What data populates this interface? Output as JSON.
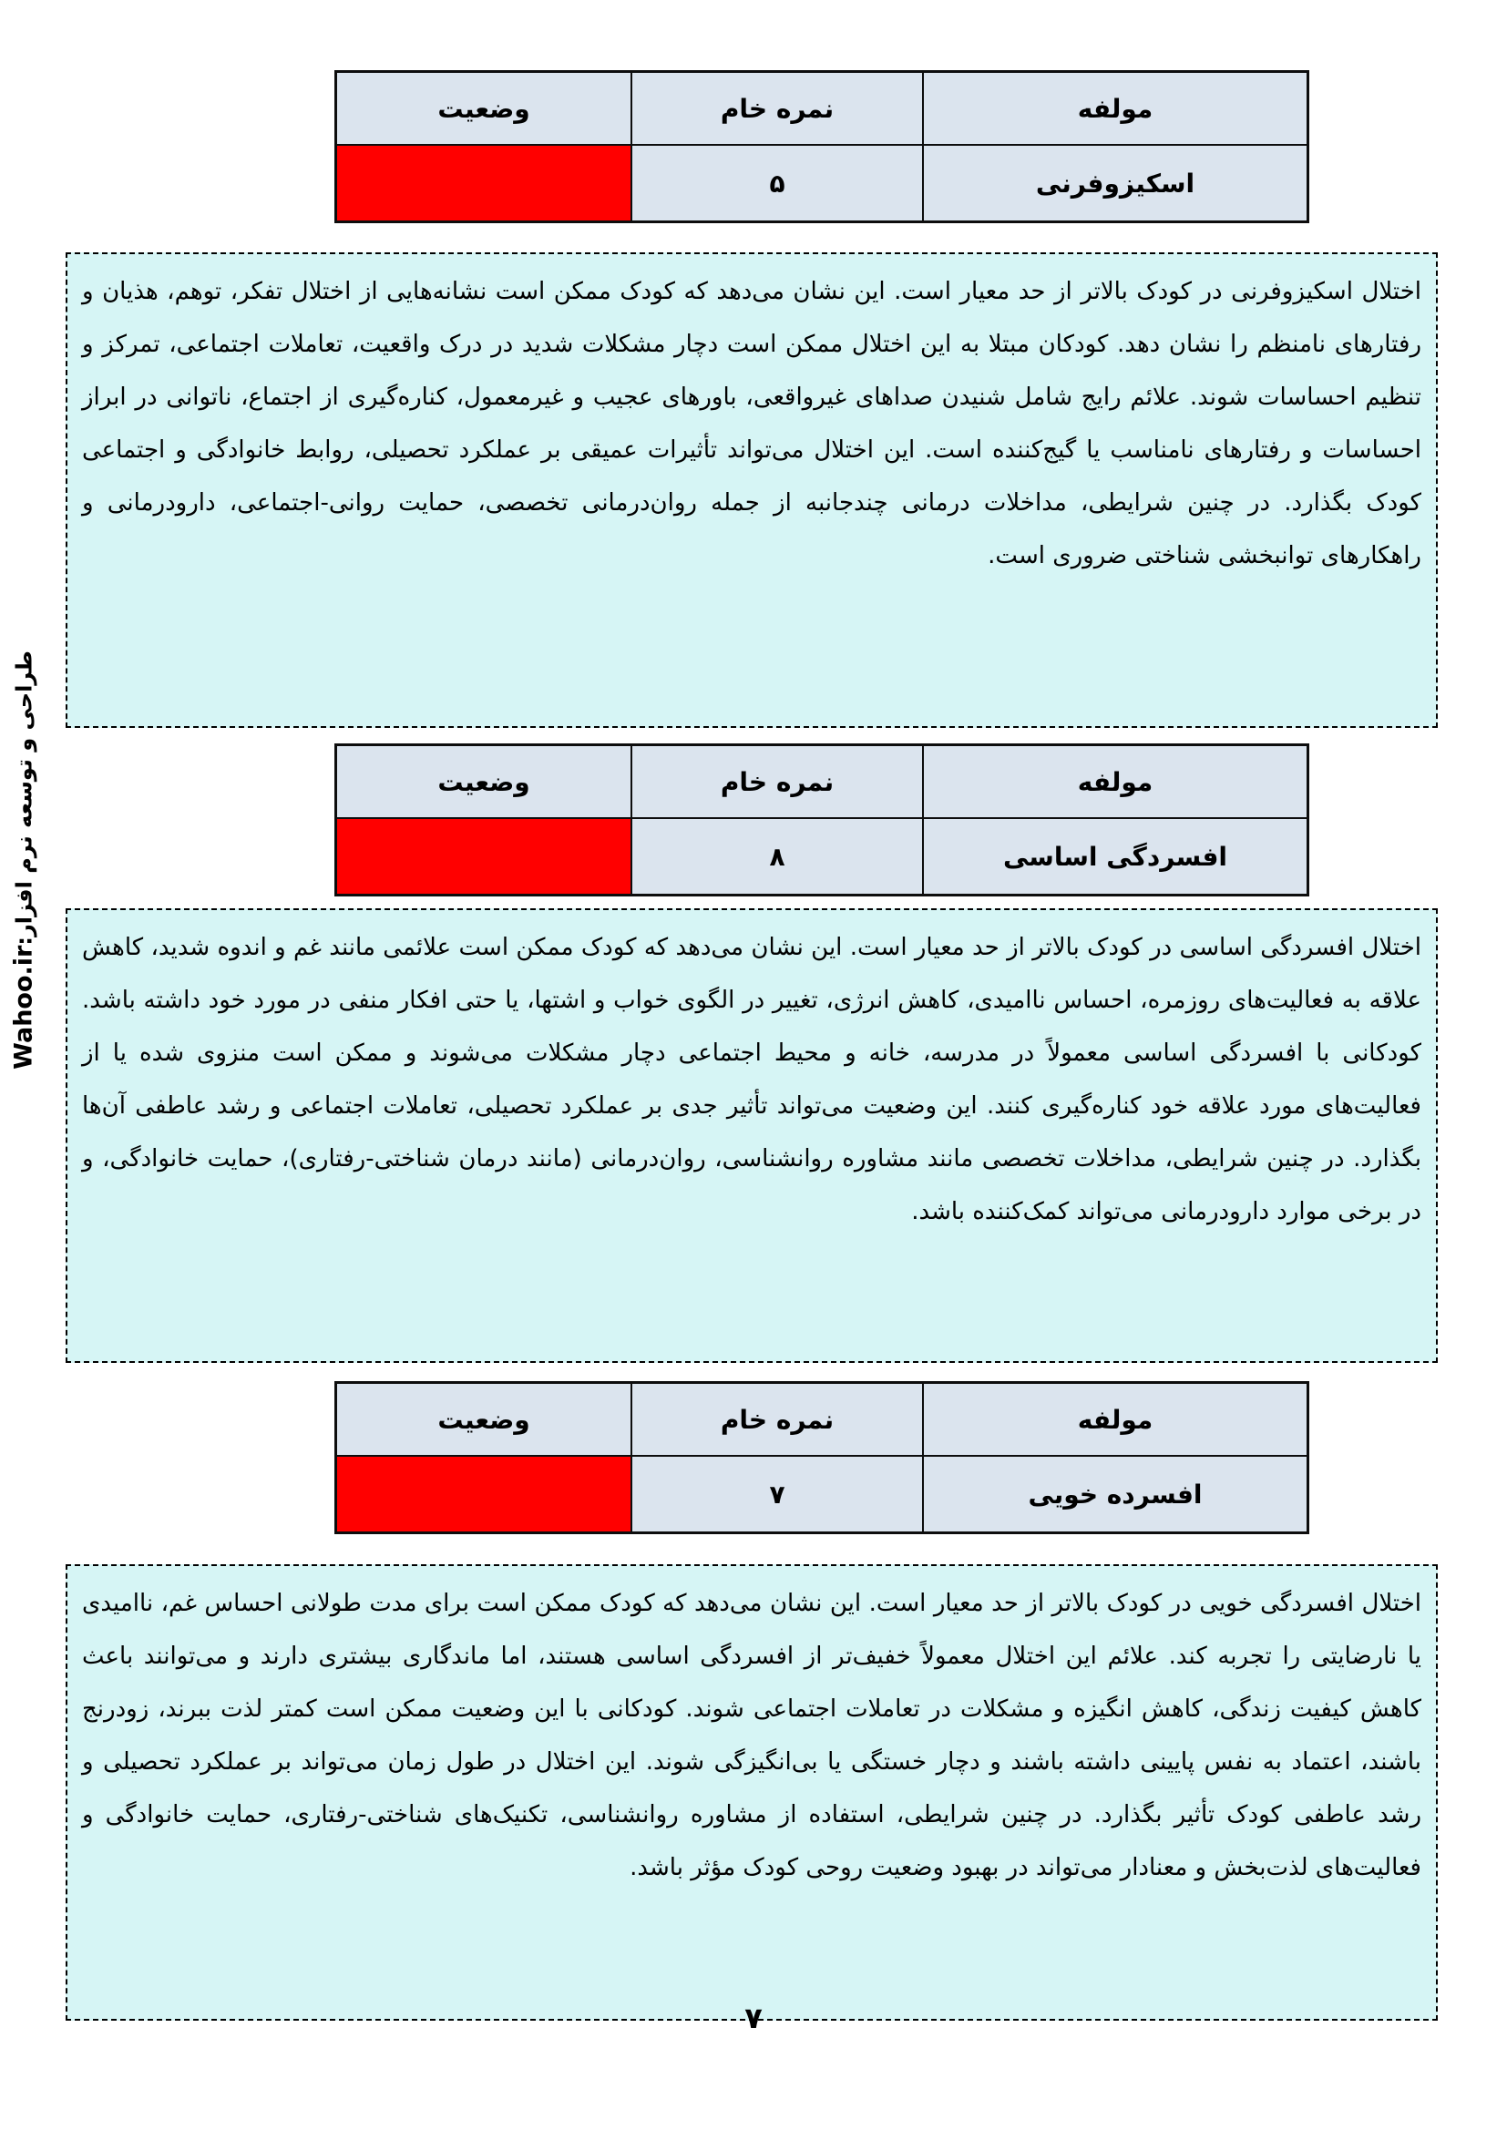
{
  "page": {
    "number": "۷"
  },
  "sidebar": {
    "credit": "طراحی و توسعه نرم افزار:",
    "brand": "Wahoo.ir"
  },
  "table_headers": {
    "component": "مولفه",
    "raw_score": "نمره خام",
    "status": "وضعیت"
  },
  "sections": [
    {
      "component": "اسکیزوفرنی",
      "raw_score": "۵",
      "status_color": "#ff0000",
      "description": "اختلال اسکیزوفرنی در کودک بالاتر از حد معیار است. این نشان می‌دهد که کودک ممکن است نشانه‌هایی از اختلال تفکر، توهم، هذیان و رفتارهای نامنظم را نشان دهد. کودکان مبتلا به این اختلال ممکن است دچار مشکلات شدید در درک واقعیت، تعاملات اجتماعی، تمرکز و تنظیم احساسات شوند. علائم رایج شامل شنیدن صداهای غیرواقعی، باورهای عجیب و غیرمعمول، کناره‌گیری از اجتماع، ناتوانی در ابراز احساسات و رفتارهای نامناسب یا گیج‌کننده است. این اختلال می‌تواند تأثیرات عمیقی بر عملکرد تحصیلی، روابط خانوادگی و اجتماعی کودک بگذارد. در چنین شرایطی، مداخلات درمانی چندجانبه از جمله روان‌درمانی تخصصی، حمایت روانی-اجتماعی، دارودرمانی و راهکارهای توانبخشی شناختی ضروری است."
    },
    {
      "component": "افسردگی اساسی",
      "raw_score": "۸",
      "status_color": "#ff0000",
      "description": "اختلال افسردگی اساسی در کودک بالاتر از حد معیار است. این نشان می‌دهد که کودک ممکن است علائمی مانند غم و اندوه شدید، کاهش علاقه به فعالیت‌های روزمره، احساس ناامیدی، کاهش انرژی، تغییر در الگوی خواب و اشتها، یا حتی افکار منفی در مورد خود داشته باشد. کودکانی با افسردگی اساسی معمولاً در مدرسه، خانه و محیط اجتماعی دچار مشکلات می‌شوند و ممکن است منزوی شده یا از فعالیت‌های مورد علاقه خود کناره‌گیری کنند. این وضعیت می‌تواند تأثیر جدی بر عملکرد تحصیلی، تعاملات اجتماعی و رشد عاطفی آن‌ها بگذارد. در چنین شرایطی، مداخلات تخصصی مانند مشاوره روانشناسی، روان‌درمانی (مانند درمان شناختی-رفتاری)، حمایت خانوادگی، و در برخی موارد دارودرمانی می‌تواند کمک‌کننده باشد."
    },
    {
      "component": "افسرده خویی",
      "raw_score": "۷",
      "status_color": "#ff0000",
      "description": "اختلال افسردگی خویی در کودک بالاتر از حد معیار است. این نشان می‌دهد که کودک ممکن است برای مدت طولانی احساس غم، ناامیدی یا نارضایتی را تجربه کند. علائم این اختلال معمولاً خفیف‌تر از افسردگی اساسی هستند، اما ماندگاری بیشتری دارند و می‌توانند باعث کاهش کیفیت زندگی، کاهش انگیزه و مشکلات در تعاملات اجتماعی شوند. کودکانی با این وضعیت ممکن است کمتر لذت ببرند، زودرنج باشند، اعتماد به نفس پایینی داشته باشند و دچار خستگی یا بی‌انگیزگی شوند. این اختلال در طول زمان می‌تواند بر عملکرد تحصیلی و رشد عاطفی کودک تأثیر بگذارد. در چنین شرایطی، استفاده از مشاوره روانشناسی، تکنیک‌های شناختی-رفتاری، حمایت خانوادگی و فعالیت‌های لذت‌بخش و معنادار می‌تواند در بهبود وضعیت روحی کودک مؤثر باشد."
    }
  ],
  "colors": {
    "cell_bg": "#dbe4ee",
    "status_red": "#ff0000",
    "note_bg": "#d6f5f5",
    "border": "#000000"
  }
}
